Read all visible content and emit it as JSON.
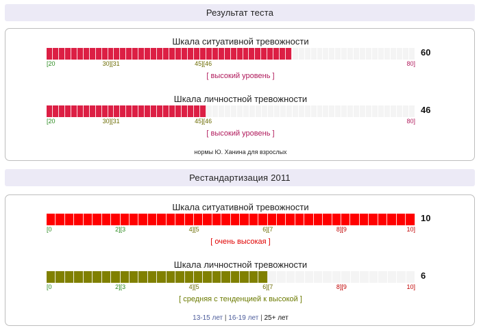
{
  "section1": {
    "title": "Результат теста",
    "scales": [
      {
        "title": "Шкала ситуативной тревожности",
        "score": "60",
        "min": 20,
        "max": 80,
        "value": 60,
        "cell_count": 60,
        "fill_color": "#dc1f44",
        "ticks": [
          {
            "text": "[20",
            "value": 20,
            "class": "tick-low",
            "anchor": "start"
          },
          {
            "text": "30][31",
            "value": 30.5,
            "class": "tick-mid",
            "anchor": "middle"
          },
          {
            "text": "45][46",
            "value": 45.5,
            "class": "tick-mid",
            "anchor": "middle"
          },
          {
            "text": "80]",
            "value": 80,
            "class": "tick-high",
            "anchor": "end"
          }
        ],
        "level": "[ высокий уровень ]",
        "level_color": "#b0185a"
      },
      {
        "title": "Шкала личностной тревожности",
        "score": "46",
        "min": 20,
        "max": 80,
        "value": 46,
        "cell_count": 60,
        "fill_color": "#dc1f44",
        "ticks": [
          {
            "text": "[20",
            "value": 20,
            "class": "tick-low",
            "anchor": "start"
          },
          {
            "text": "30][31",
            "value": 30.5,
            "class": "tick-mid",
            "anchor": "middle"
          },
          {
            "text": "45][46",
            "value": 45.5,
            "class": "tick-mid",
            "anchor": "middle"
          },
          {
            "text": "80]",
            "value": 80,
            "class": "tick-high",
            "anchor": "end"
          }
        ],
        "level": "[ высокий уровень ]",
        "level_color": "#b0185a"
      }
    ],
    "norms": "нормы Ю. Ханина для взрослых"
  },
  "section2": {
    "title": "Рестандартизация 2011",
    "scales": [
      {
        "title": "Шкала ситуативной тревожности",
        "score": "10",
        "min": 0,
        "max": 10,
        "value": 10,
        "cell_count": 40,
        "fill_color": "#ff0000",
        "ticks": [
          {
            "text": "[0",
            "value": 0,
            "class": "tick-low",
            "anchor": "start"
          },
          {
            "text": "2][3",
            "value": 2,
            "class": "tick-low",
            "anchor": "middle"
          },
          {
            "text": "4][5",
            "value": 4,
            "class": "tick-mid",
            "anchor": "middle"
          },
          {
            "text": "6][7",
            "value": 6,
            "class": "tick-mid",
            "anchor": "middle"
          },
          {
            "text": "8][9",
            "value": 8,
            "class": "tick-red",
            "anchor": "middle"
          },
          {
            "text": "10]",
            "value": 10,
            "class": "tick-red",
            "anchor": "end"
          }
        ],
        "level": "[ очень высокая ]",
        "level_color": "#e00000"
      },
      {
        "title": "Шкала личностной тревожности",
        "score": "6",
        "min": 0,
        "max": 10,
        "value": 6,
        "cell_count": 40,
        "fill_color": "#808000",
        "ticks": [
          {
            "text": "[0",
            "value": 0,
            "class": "tick-low",
            "anchor": "start"
          },
          {
            "text": "2][3",
            "value": 2,
            "class": "tick-low",
            "anchor": "middle"
          },
          {
            "text": "4][5",
            "value": 4,
            "class": "tick-mid",
            "anchor": "middle"
          },
          {
            "text": "6][7",
            "value": 6,
            "class": "tick-mid",
            "anchor": "middle"
          },
          {
            "text": "8][9",
            "value": 8,
            "class": "tick-red",
            "anchor": "middle"
          },
          {
            "text": "10]",
            "value": 10,
            "class": "tick-red",
            "anchor": "end"
          }
        ],
        "level": "[ средняя с тенденцией к высокой ]",
        "level_color": "#6b7a00"
      }
    ],
    "age_groups": [
      {
        "label": "13-15 лет",
        "active": false
      },
      {
        "label": "16-19 лет",
        "active": false
      },
      {
        "label": "25+ лет",
        "active": true
      }
    ],
    "age_separator": "|"
  }
}
